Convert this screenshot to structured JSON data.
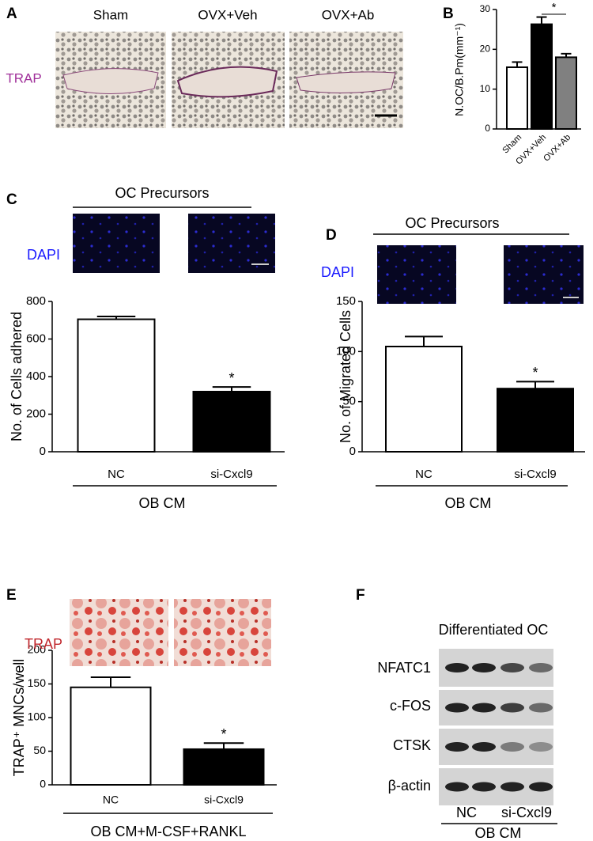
{
  "chart_data": [
    {
      "type": "bar",
      "panel": "B",
      "y_label": "N.OC/B.Pm(mm⁻¹)",
      "categories": [
        "Sham",
        "OVX+Veh",
        "OVX+Ab"
      ],
      "values": [
        15.5,
        26.3,
        18
      ],
      "errors": [
        1.3,
        1.8,
        0.9
      ],
      "colors": [
        "#ffffff",
        "#000000",
        "#808080"
      ],
      "ylim": [
        0,
        30
      ],
      "yticks": [
        0,
        10,
        20,
        30
      ],
      "significance": "*"
    },
    {
      "type": "bar",
      "panel": "C",
      "header": "OC Precursors",
      "stain": "DAPI",
      "footer": "OB CM",
      "y_label": "No. of Cells adhered",
      "categories": [
        "NC",
        "si-Cxcl9"
      ],
      "values": [
        705,
        320
      ],
      "errors": [
        15,
        25
      ],
      "colors": [
        "#ffffff",
        "#000000"
      ],
      "ylim": [
        0,
        800
      ],
      "yticks": [
        0,
        200,
        400,
        600,
        800
      ],
      "significance": "*"
    },
    {
      "type": "bar",
      "panel": "D",
      "header": "OC Precursors",
      "stain": "DAPI",
      "footer": "OB CM",
      "y_label": "No. of Migrated Cells",
      "categories": [
        "NC",
        "si-Cxcl9"
      ],
      "values": [
        105,
        63
      ],
      "errors": [
        10,
        7
      ],
      "colors": [
        "#ffffff",
        "#000000"
      ],
      "ylim": [
        0,
        150
      ],
      "yticks": [
        0,
        50,
        100,
        150
      ],
      "significance": "*"
    },
    {
      "type": "bar",
      "panel": "E",
      "stain": "TRAP",
      "footer": "OB CM+M-CSF+RANKL",
      "y_label": "TRAP⁺ MNCs/well",
      "categories": [
        "NC",
        "si-Cxcl9"
      ],
      "values": [
        145,
        53
      ],
      "errors": [
        15,
        9
      ],
      "colors": [
        "#ffffff",
        "#000000"
      ],
      "ylim": [
        0,
        200
      ],
      "yticks": [
        0,
        50,
        100,
        150,
        200
      ],
      "significance": "*"
    }
  ],
  "panel_a": {
    "panel": "A",
    "stain": "TRAP",
    "groups": [
      "Sham",
      "OVX+Veh",
      "OVX+Ab"
    ]
  },
  "panel_f": {
    "panel": "F",
    "title": "Differentiated OC",
    "rows": [
      "NFATC1",
      "c-FOS",
      "CTSK",
      "β-actin"
    ],
    "lanes": [
      "NC",
      "si-Cxcl9"
    ],
    "footer": "OB CM"
  }
}
